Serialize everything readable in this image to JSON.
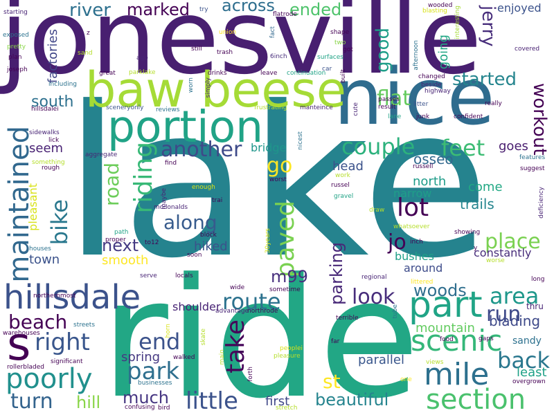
{
  "words": [
    {
      "text": "lake",
      "color": "#25838e",
      "orient": "h"
    },
    {
      "text": "ride",
      "color": "#22a785",
      "orient": "h"
    },
    {
      "text": "jonesville",
      "color": "#481f70",
      "orient": "h"
    },
    {
      "text": "nice",
      "color": "#2f6c8e",
      "orient": "h"
    },
    {
      "text": "baw beese",
      "color": "#a5db36",
      "orient": "h"
    },
    {
      "text": "portion",
      "color": "#20a386",
      "orient": "h"
    },
    {
      "text": "hillsdale",
      "color": "#3b528b",
      "orient": "h"
    },
    {
      "text": "s",
      "color": "#440154",
      "orient": "h"
    },
    {
      "text": "maintained",
      "color": "#31688e",
      "orient": "v"
    },
    {
      "text": "part",
      "color": "#20a486",
      "orient": "h"
    },
    {
      "text": "scenic",
      "color": "#35b779",
      "orient": "h"
    },
    {
      "text": "mile",
      "color": "#2d708e",
      "orient": "h"
    },
    {
      "text": "section",
      "color": "#4ac16d",
      "orient": "h"
    },
    {
      "text": "riding",
      "color": "#38b977",
      "orient": "vu"
    },
    {
      "text": "paved",
      "color": "#7ad151",
      "orient": "vu"
    },
    {
      "text": "lot",
      "color": "#440154",
      "orient": "h"
    },
    {
      "text": "couple",
      "color": "#2db27d",
      "orient": "h"
    },
    {
      "text": "feet",
      "color": "#3dbc74",
      "orient": "h"
    },
    {
      "text": "another",
      "color": "#3e4a89",
      "orient": "h"
    },
    {
      "text": "route",
      "color": "#2c728e",
      "orient": "h"
    },
    {
      "text": "poorly",
      "color": "#21908d",
      "orient": "h"
    },
    {
      "text": "right",
      "color": "#39568c",
      "orient": "h"
    },
    {
      "text": "beach",
      "color": "#440154",
      "orient": "h"
    },
    {
      "text": "end",
      "color": "#3b528b",
      "orient": "h"
    },
    {
      "text": "park",
      "color": "#2e6f8e",
      "orient": "h"
    },
    {
      "text": "take",
      "color": "#450559",
      "orient": "vu"
    },
    {
      "text": "place",
      "color": "#7ad151",
      "orient": "h"
    },
    {
      "text": "area",
      "color": "#1f988b",
      "orient": "h"
    },
    {
      "text": "run",
      "color": "#3e4989",
      "orient": "h"
    },
    {
      "text": "back",
      "color": "#2a778e",
      "orient": "h"
    },
    {
      "text": "little",
      "color": "#3b528b",
      "orient": "h"
    },
    {
      "text": "turn",
      "color": "#33638d",
      "orient": "h"
    },
    {
      "text": "look",
      "color": "#472d7b",
      "orient": "h"
    },
    {
      "text": "bike",
      "color": "#2a788e",
      "orient": "vu"
    },
    {
      "text": "road",
      "color": "#6ccd5a",
      "orient": "vu"
    },
    {
      "text": "go",
      "color": "#fde725",
      "orient": "h"
    },
    {
      "text": "along",
      "color": "#375b8d",
      "orient": "h"
    },
    {
      "text": "started",
      "color": "#25858e",
      "orient": "h"
    },
    {
      "text": "flat",
      "color": "#65cb5e",
      "orient": "h"
    },
    {
      "text": "good",
      "color": "#1f9e89",
      "orient": "vu"
    },
    {
      "text": "workout",
      "color": "#440154",
      "orient": "v"
    },
    {
      "text": "jerry",
      "color": "#472d7b",
      "orient": "v"
    },
    {
      "text": "river",
      "color": "#2d708e",
      "orient": "h"
    },
    {
      "text": "marked",
      "color": "#440154",
      "orient": "h"
    },
    {
      "text": "across",
      "color": "#2e6e8e",
      "orient": "h"
    },
    {
      "text": "ended",
      "color": "#4ec36b",
      "orient": "h"
    },
    {
      "text": "south",
      "color": "#2d708e",
      "orient": "h"
    },
    {
      "text": "much",
      "color": "#453581",
      "orient": "h"
    },
    {
      "text": "beautiful",
      "color": "#25848e",
      "orient": "h"
    },
    {
      "text": "hill",
      "color": "#89d548",
      "orient": "h"
    },
    {
      "text": "jo",
      "color": "#440154",
      "orient": "h"
    },
    {
      "text": "next",
      "color": "#443a83",
      "orient": "h"
    },
    {
      "text": "woods",
      "color": "#2e6e8e",
      "orient": "h"
    },
    {
      "text": "parking",
      "color": "#482878",
      "orient": "vu"
    },
    {
      "text": "m99",
      "color": "#472f7d",
      "orient": "h"
    },
    {
      "text": "st",
      "color": "#fde725",
      "orient": "h"
    },
    {
      "text": "blading",
      "color": "#3e4989",
      "orient": "h"
    },
    {
      "text": "spring",
      "color": "#453882",
      "orient": "h"
    },
    {
      "text": "mountain",
      "color": "#62cb5f",
      "orient": "h"
    },
    {
      "text": "parallel",
      "color": "#39568c",
      "orient": "h"
    },
    {
      "text": "head",
      "color": "#3b528b",
      "orient": "h"
    },
    {
      "text": "osseo",
      "color": "#31688e",
      "orient": "h"
    },
    {
      "text": "north",
      "color": "#1e9c89",
      "orient": "h"
    },
    {
      "text": "trails",
      "color": "#25858e",
      "orient": "h"
    },
    {
      "text": "come",
      "color": "#22a884",
      "orient": "h"
    },
    {
      "text": "goes",
      "color": "#481d6f",
      "orient": "h"
    },
    {
      "text": "least",
      "color": "#1fa187",
      "orient": "h"
    },
    {
      "text": "hiked",
      "color": "#3b528b",
      "orient": "h"
    },
    {
      "text": "smooth",
      "color": "#fde725",
      "orient": "h"
    },
    {
      "text": "town",
      "color": "#3b528b",
      "orient": "h"
    },
    {
      "text": "seem",
      "color": "#482173",
      "orient": "h"
    },
    {
      "text": "bridge",
      "color": "#1f968b",
      "orient": "h"
    },
    {
      "text": "shoulder",
      "color": "#482475",
      "orient": "h"
    },
    {
      "text": "first",
      "color": "#3f4788",
      "orient": "h"
    },
    {
      "text": "factories",
      "color": "#404688",
      "orient": "vu"
    },
    {
      "text": "pleasant",
      "color": "#d8e219",
      "orient": "vu"
    },
    {
      "text": "going",
      "color": "#22a785",
      "orient": "vu"
    },
    {
      "text": "enjoyed",
      "color": "#3b528b",
      "orient": "h"
    },
    {
      "text": "constantly",
      "color": "#472c7a",
      "orient": "h"
    },
    {
      "text": "bushes",
      "color": "#1fa088",
      "orient": "h"
    },
    {
      "text": "around",
      "color": "#3e4c8a",
      "orient": "h"
    },
    {
      "text": "narrow",
      "color": "#1f9e89",
      "orient": "h"
    },
    {
      "text": "sandy",
      "color": "#2d718e",
      "orient": "h"
    },
    {
      "text": "thru",
      "color": "#482576",
      "orient": "h"
    }
  ],
  "small_words": [
    "starting",
    "try",
    "flatrode",
    "wooded",
    "blasting",
    "exposed",
    "z",
    "union",
    "fact",
    "shape",
    "interesting",
    "covered",
    "pretty",
    "two",
    "afternoon",
    "sand",
    "still",
    "got",
    "plan",
    "ago",
    "trash",
    "6inch",
    "surfaces",
    "joseph",
    "car",
    "parklake",
    "drinks",
    "leave",
    "continuation",
    "changed",
    "beside",
    "highway",
    "great",
    "including",
    "worn",
    "built",
    "litter",
    "really",
    "hillsdalei",
    "sceneryonly",
    "simply",
    "reviews",
    "frustrating",
    "manteince",
    "passes",
    "result",
    "cute",
    "lane",
    "junk",
    "confident",
    "sidewalks",
    "lick",
    "aggregate",
    "find",
    "nicest",
    "russell",
    "features",
    "something",
    "rough",
    "worst",
    "russel",
    "suggest",
    "work",
    "gravel",
    "enough",
    "trai",
    "maybe",
    "mcdonalds",
    "draw",
    "whatsoever",
    "deficiency",
    "path",
    "block",
    "30years",
    "proper",
    "to12",
    "houses",
    "soon",
    "inch",
    "showing",
    "y",
    "worse",
    "serve",
    "locals",
    "regional",
    "long",
    "wide",
    "sometime",
    "littered",
    "northernmost",
    "advantage",
    "northrode",
    "terrible",
    "streets",
    "tube",
    "warehouses",
    "horn",
    "skate",
    "far",
    "food",
    "gaps",
    "peoplei",
    "significant",
    "walked",
    "main",
    "pleasure",
    "views",
    "rollerbladed",
    "businesses",
    "forth",
    "one",
    "overgrown",
    "confusing",
    "bird",
    "stretch"
  ]
}
